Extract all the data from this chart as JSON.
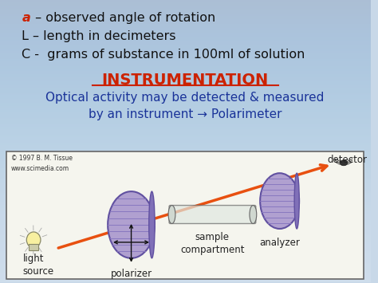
{
  "bg_color": "#c8d8e8",
  "title": "INSTRUMENTATION",
  "title_color": "#cc2200",
  "subtitle_line1": "Optical activity may be detected & measured",
  "subtitle_line2": "by an instrument → Polarimeter",
  "subtitle_color": "#1a3399",
  "line1_a": "a",
  "line1_a_color": "#cc2200",
  "line1_rest": " – observed angle of rotation",
  "line2": "L – length in decimeters",
  "line3": "C -  grams of substance in 100ml of solution",
  "text_color": "#111111",
  "diagram_bg": "#f5f5ee",
  "diagram_border": "#666666",
  "copyright": "© 1997 B. M. Tissue\nwww.scimedia.com",
  "light_source_label": "light\nsource",
  "polarizer_label": "polarizer",
  "sample_label": "sample\ncompartment",
  "analyzer_label": "analyzer",
  "detector_label": "detector",
  "beam_color": "#e85010",
  "disc_fill": "#b0a0d0",
  "disc_edge": "#6050a0",
  "disc_stripe": "#8878c0",
  "label_color": "#222222",
  "arrow_color": "#111111"
}
